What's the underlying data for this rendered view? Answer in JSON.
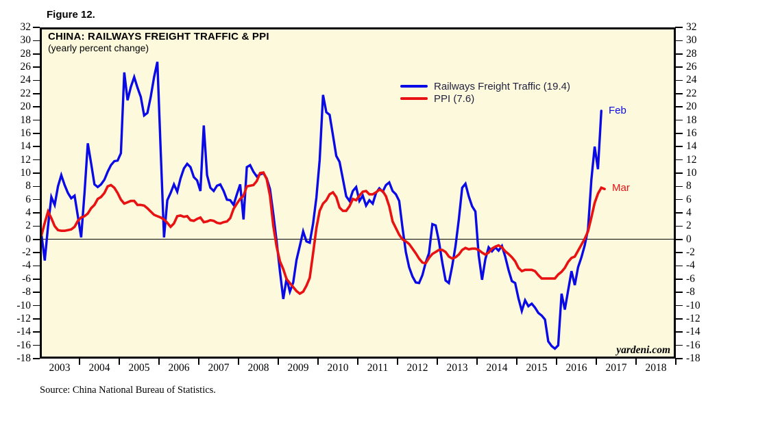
{
  "figure_label": "Figure 12.",
  "source_note": "Source: China National Bureau of Statistics.",
  "colors": {
    "plot_background": "#fcf9dc",
    "railways_line": "#0a0ae6",
    "ppi_line": "#e81212",
    "axis": "#000000",
    "legend_text": "#23233f"
  },
  "chart_data": {
    "type": "line",
    "title": "CHINA: RAILWAYS FREIGHT TRAFFIC & PPI",
    "subtitle": "(yearly percent change)",
    "watermark": "yardeni.com",
    "ylim": [
      -18,
      32
    ],
    "ytick_step": 2,
    "grid": "off",
    "zero_line": true,
    "x_start_year": 2003,
    "x_end_year": 2019,
    "x_tick_labels": [
      "2003",
      "2004",
      "2005",
      "2006",
      "2007",
      "2008",
      "2009",
      "2010",
      "2011",
      "2012",
      "2013",
      "2014",
      "2015",
      "2016",
      "2017",
      "2018"
    ],
    "legend_position": "top-center-right",
    "legend": [
      {
        "label": "Railways Freight Traffic (19.4)",
        "color": "#0a0ae6"
      },
      {
        "label": "PPI (7.6)",
        "color": "#e81212"
      }
    ],
    "annotations": [
      {
        "text": "Feb",
        "series": "Railways Freight Traffic",
        "value": 19.4,
        "color": "#0a0ae6"
      },
      {
        "text": "Mar",
        "series": "PPI",
        "value": 7.6,
        "color": "#e81212"
      }
    ],
    "series": [
      {
        "name": "Railways Freight Traffic",
        "color": "#0a0ae6",
        "start_month": "2003-01",
        "end_month": "2017-02",
        "frequency": "monthly",
        "values": [
          0.8,
          -3.2,
          2.0,
          6.4,
          5.2,
          8.0,
          9.7,
          8.2,
          7.0,
          6.2,
          6.6,
          3.5,
          0.3,
          7.0,
          14.5,
          11.5,
          8.3,
          7.9,
          8.3,
          9.0,
          10.2,
          11.2,
          11.8,
          11.9,
          13.0,
          25.2,
          21.0,
          23.0,
          24.5,
          22.9,
          21.5,
          18.7,
          19.1,
          21.5,
          24.5,
          26.8,
          13.5,
          0.3,
          5.9,
          7.0,
          8.3,
          7.2,
          9.2,
          10.7,
          11.4,
          10.9,
          9.4,
          8.9,
          7.3,
          17.2,
          9.7,
          7.8,
          7.3,
          8.1,
          8.3,
          7.3,
          6.0,
          5.9,
          5.2,
          6.8,
          8.3,
          3.0,
          10.9,
          11.2,
          10.2,
          9.5,
          9.8,
          10.0,
          9.2,
          7.6,
          3.8,
          -0.3,
          -4.8,
          -9.0,
          -5.9,
          -7.9,
          -6.5,
          -3.1,
          -1.0,
          1.2,
          -0.3,
          -0.5,
          2.4,
          6.3,
          12.0,
          21.8,
          19.2,
          18.8,
          15.7,
          12.6,
          11.7,
          9.1,
          6.5,
          5.8,
          7.3,
          7.9,
          5.8,
          6.6,
          5.1,
          5.9,
          5.4,
          7.0,
          7.7,
          7.2,
          8.2,
          8.6,
          7.3,
          6.8,
          5.8,
          1.7,
          -1.9,
          -4.2,
          -5.6,
          -6.5,
          -6.6,
          -5.4,
          -3.5,
          -2.1,
          2.3,
          2.1,
          -0.3,
          -3.5,
          -6.2,
          -6.6,
          -4.0,
          -1.0,
          3.0,
          7.8,
          8.4,
          6.5,
          5.0,
          4.2,
          -2.4,
          -6.1,
          -3.0,
          -1.2,
          -1.8,
          -1.2,
          -1.7,
          -1.0,
          -2.6,
          -4.6,
          -6.3,
          -6.6,
          -8.9,
          -10.8,
          -9.2,
          -10.1,
          -9.7,
          -10.3,
          -11.1,
          -11.5,
          -12.1,
          -15.4,
          -16.1,
          -16.5,
          -16.0,
          -8.2,
          -10.6,
          -7.7,
          -4.8,
          -6.9,
          -4.2,
          -2.7,
          -0.9,
          1.5,
          9.0,
          14.0,
          10.6,
          19.4
        ]
      },
      {
        "name": "PPI",
        "color": "#e81212",
        "start_month": "2003-01",
        "end_month": "2017-03",
        "frequency": "monthly",
        "values": [
          0.6,
          2.5,
          4.2,
          3.2,
          2.0,
          1.4,
          1.3,
          1.3,
          1.4,
          1.5,
          1.9,
          2.8,
          3.3,
          3.5,
          3.9,
          4.7,
          5.2,
          6.1,
          6.4,
          7.0,
          8.0,
          8.2,
          7.8,
          7.0,
          6.0,
          5.4,
          5.6,
          5.8,
          5.8,
          5.2,
          5.2,
          5.1,
          4.7,
          4.2,
          3.7,
          3.5,
          3.3,
          3.0,
          2.5,
          1.9,
          2.4,
          3.5,
          3.6,
          3.4,
          3.5,
          2.9,
          2.8,
          3.1,
          3.3,
          2.6,
          2.7,
          2.9,
          2.8,
          2.5,
          2.4,
          2.6,
          2.7,
          3.2,
          4.6,
          5.4,
          6.1,
          6.6,
          8.0,
          8.1,
          8.2,
          8.8,
          10.0,
          10.1,
          9.1,
          6.6,
          2.0,
          -1.1,
          -3.3,
          -4.5,
          -6.0,
          -6.6,
          -7.2,
          -7.8,
          -8.2,
          -7.9,
          -7.0,
          -5.8,
          -2.1,
          1.7,
          4.3,
          5.4,
          5.9,
          6.8,
          7.1,
          6.4,
          4.8,
          4.3,
          4.3,
          5.0,
          6.1,
          5.9,
          6.6,
          7.2,
          7.3,
          6.8,
          6.8,
          7.1,
          7.5,
          7.3,
          6.5,
          5.0,
          2.7,
          1.7,
          0.7,
          0.0,
          -0.3,
          -0.7,
          -1.4,
          -2.1,
          -2.9,
          -3.5,
          -3.6,
          -2.8,
          -2.2,
          -1.9,
          -1.6,
          -1.6,
          -1.9,
          -2.6,
          -2.9,
          -2.7,
          -2.3,
          -1.6,
          -1.3,
          -1.5,
          -1.4,
          -1.4,
          -1.6,
          -2.0,
          -2.3,
          -2.0,
          -1.4,
          -1.1,
          -0.9,
          -1.2,
          -1.8,
          -2.2,
          -2.7,
          -3.3,
          -4.3,
          -4.8,
          -4.6,
          -4.6,
          -4.6,
          -4.8,
          -5.4,
          -5.9,
          -5.9,
          -5.9,
          -5.9,
          -5.9,
          -5.3,
          -4.9,
          -4.3,
          -3.4,
          -2.8,
          -2.6,
          -1.7,
          -0.8,
          0.1,
          1.2,
          3.3,
          5.5,
          6.9,
          7.8,
          7.6
        ]
      }
    ]
  }
}
